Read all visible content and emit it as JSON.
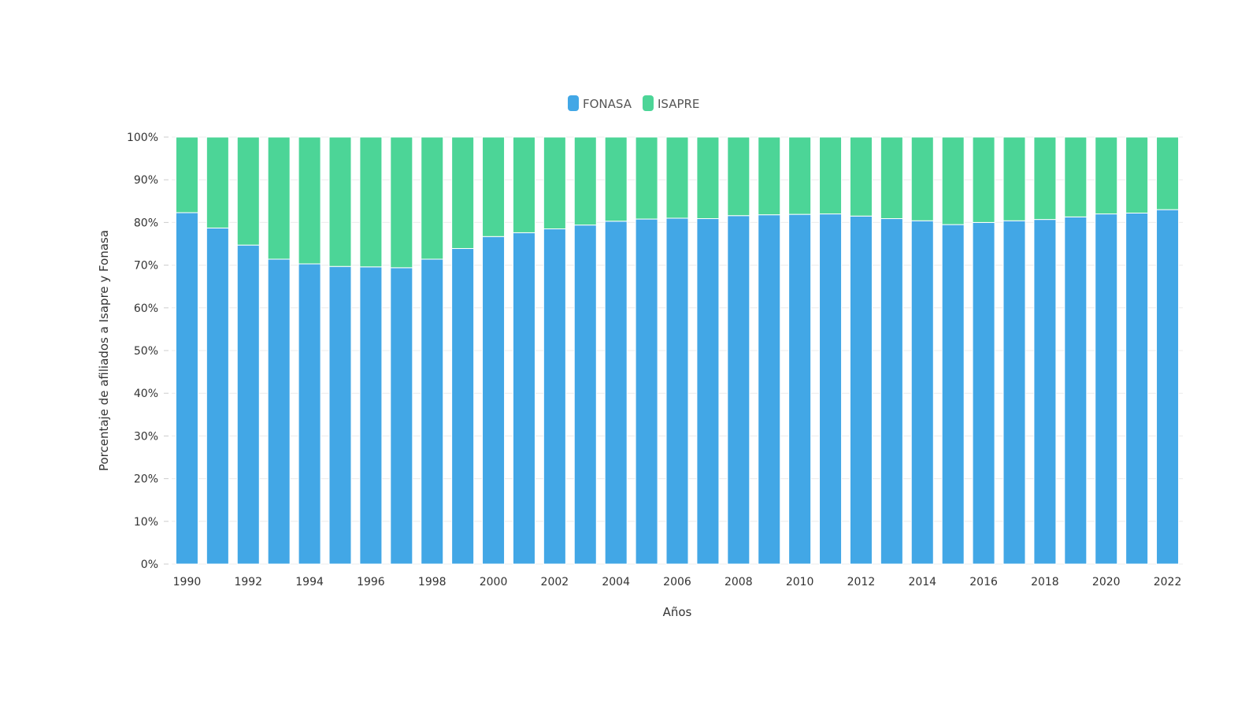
{
  "chart_data": {
    "type": "bar",
    "stacked": true,
    "normalized_percent": true,
    "categories": [
      "1990",
      "1991",
      "1992",
      "1993",
      "1994",
      "1995",
      "1996",
      "1997",
      "1998",
      "1999",
      "2000",
      "2001",
      "2002",
      "2003",
      "2004",
      "2005",
      "2006",
      "2007",
      "2008",
      "2009",
      "2010",
      "2011",
      "2012",
      "2013",
      "2014",
      "2015",
      "2016",
      "2017",
      "2018",
      "2019",
      "2020",
      "2021",
      "2022"
    ],
    "x_tick_labels": [
      "1990",
      "1992",
      "1994",
      "1996",
      "1998",
      "2000",
      "2002",
      "2004",
      "2006",
      "2008",
      "2010",
      "2012",
      "2014",
      "2016",
      "2018",
      "2020",
      "2022"
    ],
    "series": [
      {
        "name": "FONASA",
        "color": "#42a7e6",
        "values": [
          82.3,
          78.7,
          74.7,
          71.4,
          70.3,
          69.7,
          69.6,
          69.4,
          71.4,
          73.9,
          76.7,
          77.6,
          78.5,
          79.4,
          80.3,
          80.8,
          81.0,
          80.9,
          81.6,
          81.8,
          81.9,
          82.0,
          81.5,
          80.9,
          80.4,
          79.5,
          80.0,
          80.4,
          80.7,
          81.3,
          82.0,
          82.2,
          83.0
        ]
      },
      {
        "name": "ISAPRE",
        "color": "#4cd597",
        "values": [
          17.7,
          21.3,
          25.3,
          28.6,
          29.7,
          30.3,
          30.4,
          30.6,
          28.6,
          26.1,
          23.3,
          22.4,
          21.5,
          20.6,
          19.7,
          19.2,
          19.0,
          19.1,
          18.4,
          18.2,
          18.1,
          18.0,
          18.5,
          19.1,
          19.6,
          20.5,
          20.0,
          19.6,
          19.3,
          18.7,
          18.0,
          17.8,
          17.0
        ]
      }
    ],
    "title": "",
    "xlabel": "Años",
    "ylabel": "Porcentaje de afiliados a Isapre y Fonasa",
    "ylim": [
      0,
      100
    ],
    "y_ticks": [
      0,
      10,
      20,
      30,
      40,
      50,
      60,
      70,
      80,
      90,
      100
    ],
    "y_tick_suffix": "%",
    "grid": true,
    "legend_position": "top-center"
  }
}
